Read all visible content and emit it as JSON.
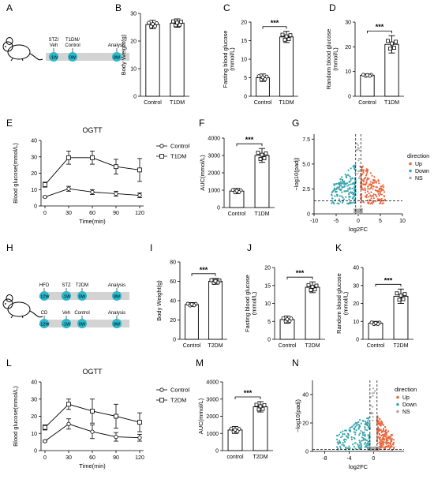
{
  "figure": {
    "panel_letters": [
      "A",
      "B",
      "C",
      "D",
      "E",
      "F",
      "G",
      "H",
      "I",
      "J",
      "K",
      "L",
      "M",
      "N"
    ]
  },
  "colors": {
    "axis": "#000000",
    "timeline_bar": "#d3d3d3",
    "timeline_dot": "#2bb6c9",
    "volcano_up": "#e8683f",
    "volcano_down": "#3aa6ad",
    "volcano_ns": "#a9a9a9"
  },
  "schematic_A": {
    "labels_top": [
      "STZ/\nVeh",
      "T1DM/\nControl",
      "Analysis"
    ],
    "dots": [
      "-1W",
      "0W",
      "8W"
    ]
  },
  "schematic_H": {
    "row1_labels": [
      "HFD",
      "STZ",
      "T2DM",
      "Analysis"
    ],
    "row1_dots": [
      "-12W",
      "-1W",
      "0W",
      "8W"
    ],
    "row2_labels": [
      "CD",
      "Veh",
      "Control",
      "Analysis"
    ],
    "row2_dots": [
      "-12W",
      "-1W",
      "0W",
      "8W"
    ]
  },
  "chart_data": [
    {
      "id": "B",
      "type": "bar",
      "categories": [
        "Control",
        "T1DM"
      ],
      "values": [
        26,
        26.5
      ],
      "errors": [
        1.5,
        1.5
      ],
      "ylabel": "Body Weight(g)",
      "ylim": [
        0,
        30
      ],
      "yticks": [
        0,
        10,
        20,
        30
      ],
      "significance": ""
    },
    {
      "id": "C",
      "type": "bar",
      "categories": [
        "Control",
        "T1DM"
      ],
      "values": [
        5,
        16
      ],
      "errors": [
        1,
        1.5
      ],
      "ylabel": "Fasting blood glucose\n(mmol/L)",
      "ylim": [
        0,
        20
      ],
      "yticks": [
        0,
        5,
        10,
        15,
        20
      ],
      "significance": "***"
    },
    {
      "id": "D",
      "type": "bar",
      "categories": [
        "Control",
        "T1DM"
      ],
      "values": [
        8.5,
        21
      ],
      "errors": [
        0.5,
        3.5
      ],
      "ylabel": "Random blood glucose\n(mmol/L)",
      "ylim": [
        0,
        30
      ],
      "yticks": [
        0,
        10,
        20,
        30
      ],
      "significance": "***"
    },
    {
      "id": "E",
      "type": "line",
      "title": "OGTT",
      "x": [
        0,
        30,
        60,
        90,
        120
      ],
      "xlabel": "Time(min)",
      "ylabel": "Blood glucose(mmol/L)",
      "ylim": [
        0,
        40
      ],
      "yticks": [
        0,
        10,
        20,
        30,
        40
      ],
      "series": [
        {
          "name": "Control",
          "values": [
            5.5,
            10.5,
            8.5,
            7.5,
            6.5
          ],
          "errors": [
            0.5,
            1.5,
            1.5,
            1.5,
            1.5
          ]
        },
        {
          "name": "T1DM",
          "values": [
            13,
            29.5,
            29.5,
            24,
            22
          ],
          "errors": [
            1.5,
            4,
            4,
            4.5,
            7
          ]
        }
      ]
    },
    {
      "id": "F",
      "type": "bar",
      "categories": [
        "Control",
        "T1DM"
      ],
      "values": [
        950,
        3000
      ],
      "errors": [
        150,
        400
      ],
      "ylabel": "AUC(mmol/L)",
      "ylim": [
        0,
        4000
      ],
      "yticks": [
        0,
        1000,
        2000,
        3000,
        4000
      ],
      "significance": "***"
    },
    {
      "id": "G",
      "type": "scatter",
      "subtype": "volcano",
      "xlabel": "log2FC",
      "ylabel": "−log10(padj)",
      "xlim": [
        -10,
        10
      ],
      "ylim": [
        0,
        8
      ],
      "xticks": [
        -10,
        -5,
        0,
        5,
        10
      ],
      "yticks": [
        0,
        2.5,
        5.0,
        7.5
      ],
      "legend_title": "direction",
      "legend": [
        "Up",
        "Down",
        "NS"
      ],
      "threshold_x": [
        -0.58,
        0.58
      ],
      "threshold_y": 1.3
    },
    {
      "id": "I",
      "type": "bar",
      "categories": [
        "Control",
        "T2DM"
      ],
      "values": [
        36,
        60
      ],
      "errors": [
        2,
        3
      ],
      "ylabel": "Body Weight(g)",
      "ylim": [
        0,
        80
      ],
      "yticks": [
        0,
        20,
        40,
        60,
        80
      ],
      "significance": "***"
    },
    {
      "id": "J",
      "type": "bar",
      "categories": [
        "Control",
        "T2DM"
      ],
      "values": [
        5.5,
        14.5
      ],
      "errors": [
        1,
        1.5
      ],
      "ylabel": "Fasting blood glucose\n(mmol/L)",
      "ylim": [
        0,
        20
      ],
      "yticks": [
        0,
        5,
        10,
        15,
        20
      ],
      "significance": "***"
    },
    {
      "id": "K",
      "type": "bar",
      "categories": [
        "Control",
        "T2DM"
      ],
      "values": [
        9,
        24
      ],
      "errors": [
        1,
        4
      ],
      "ylabel": "Random blood glucose\n(mmol/L)",
      "ylim": [
        0,
        40
      ],
      "yticks": [
        0,
        10,
        20,
        30,
        40
      ],
      "significance": "***"
    },
    {
      "id": "L",
      "type": "line",
      "title": "OGTT",
      "x": [
        0,
        30,
        60,
        90,
        120
      ],
      "xlabel": "Time(min)",
      "ylabel": "Blood glucose(mmol/L)",
      "ylim": [
        0,
        40
      ],
      "yticks": [
        0,
        10,
        20,
        30,
        40
      ],
      "series": [
        {
          "name": "Control",
          "values": [
            5.5,
            15.5,
            11,
            8,
            7.5
          ],
          "errors": [
            0.5,
            3,
            4,
            2.5,
            2
          ]
        },
        {
          "name": "T2DM",
          "values": [
            13.5,
            27,
            23,
            20,
            16.5
          ],
          "errors": [
            1.5,
            3,
            7,
            7,
            5.5
          ]
        }
      ]
    },
    {
      "id": "M",
      "type": "bar",
      "categories": [
        "control",
        "T2DM"
      ],
      "values": [
        1200,
        2550
      ],
      "errors": [
        200,
        300
      ],
      "ylabel": "AUC(mmol/L)",
      "ylim": [
        0,
        4000
      ],
      "yticks": [
        0,
        1000,
        2000,
        3000,
        4000
      ],
      "significance": "***"
    },
    {
      "id": "N",
      "type": "scatter",
      "subtype": "volcano",
      "xlabel": "log2FC",
      "ylabel": "−log10(padj)",
      "xlim": [
        -10,
        5
      ],
      "ylim": [
        0,
        50
      ],
      "xticks": [
        -8,
        -4,
        0
      ],
      "yticks": [
        0,
        20,
        40
      ],
      "legend_title": "direction",
      "legend": [
        "Up",
        "Down",
        "NS"
      ],
      "threshold_x": [
        -0.58,
        0.58
      ],
      "threshold_y": 1.3
    }
  ]
}
